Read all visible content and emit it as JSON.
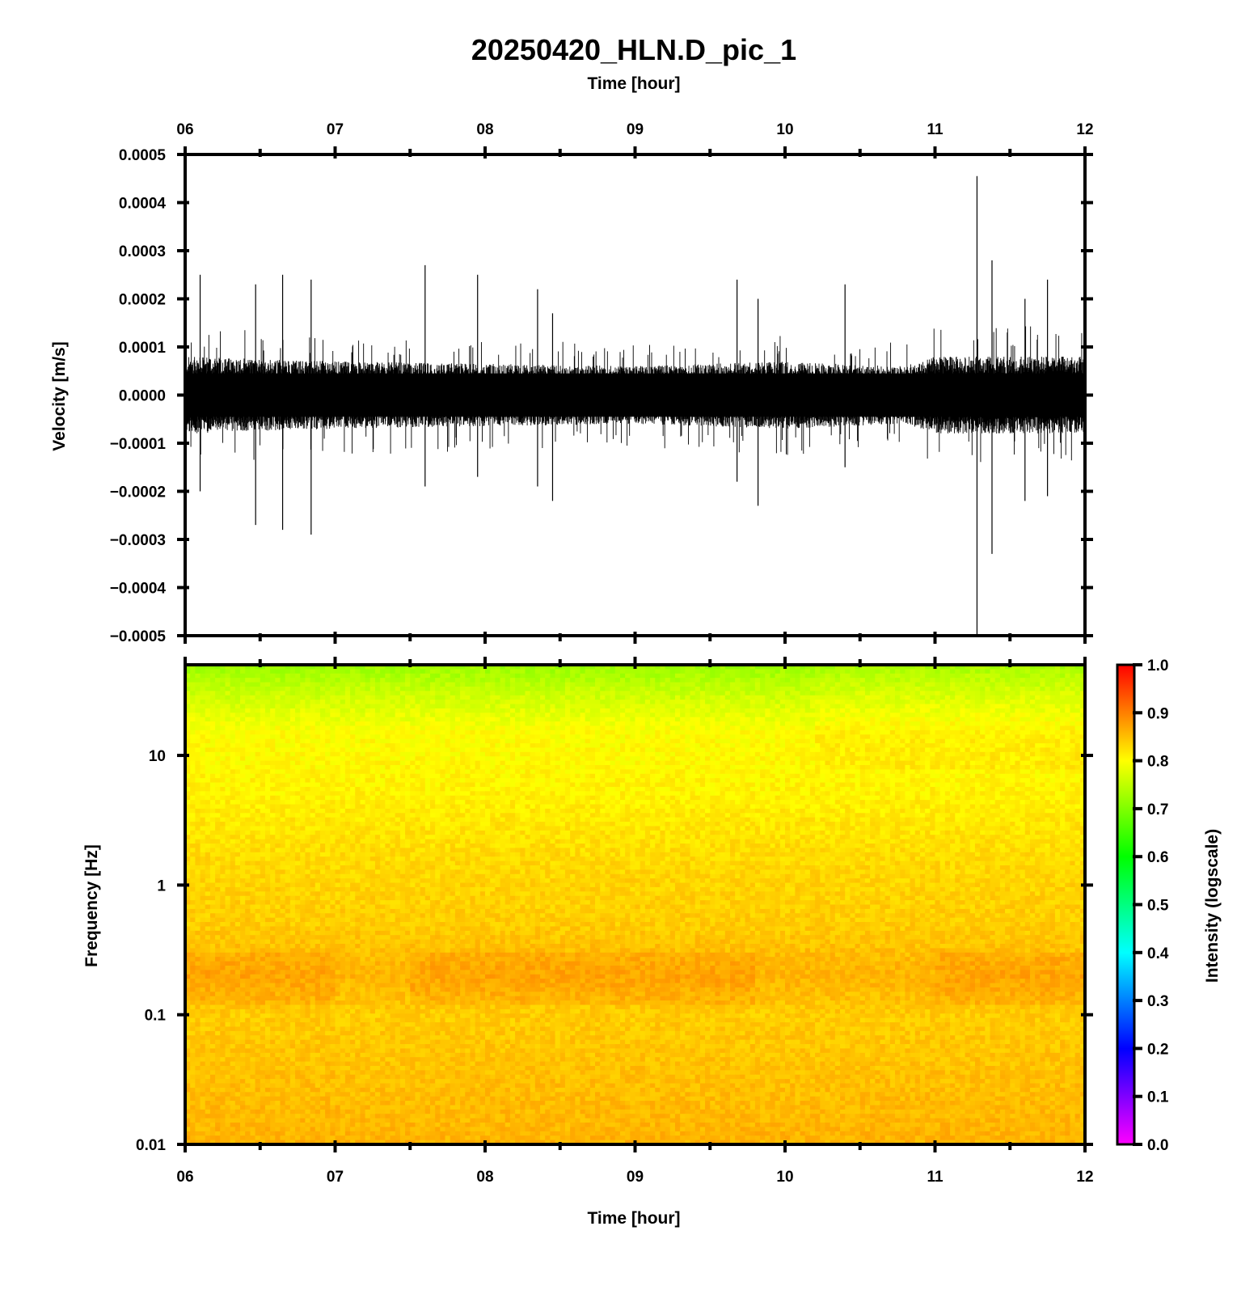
{
  "figure": {
    "title": "20250420_HLN.D_pic_1"
  },
  "chart_data": [
    {
      "type": "line",
      "panel": "waveform",
      "xlabel_top": "Time [hour]",
      "ylabel": "Velocity [m/s]",
      "x_tick_labels": [
        "06",
        "07",
        "08",
        "09",
        "10",
        "11",
        "12"
      ],
      "x_range_hours": [
        6,
        12
      ],
      "ylim": [
        -0.0005,
        0.0005
      ],
      "y_tick_labels": [
        "0.0005",
        "0.0004",
        "0.0003",
        "0.0002",
        "0.0001",
        "0.0000",
        "−0.0001",
        "−0.0002",
        "−0.0003",
        "−0.0004",
        "−0.0005"
      ],
      "y_ticks": [
        0.0005,
        0.0004,
        0.0003,
        0.0002,
        0.0001,
        0.0,
        -0.0001,
        -0.0002,
        -0.0003,
        -0.0004,
        -0.0005
      ],
      "noise_envelope": [
        {
          "t": 6.0,
          "amp": 8e-05
        },
        {
          "t": 7.0,
          "amp": 7e-05
        },
        {
          "t": 8.0,
          "amp": 6.5e-05
        },
        {
          "t": 9.0,
          "amp": 6e-05
        },
        {
          "t": 10.0,
          "amp": 7e-05
        },
        {
          "t": 10.8,
          "amp": 6e-05
        },
        {
          "t": 11.0,
          "amp": 8e-05
        },
        {
          "t": 12.0,
          "amp": 8e-05
        }
      ],
      "spikes": [
        {
          "t": 6.1,
          "pos": 0.00025,
          "neg": -0.0002
        },
        {
          "t": 6.47,
          "pos": 0.00023,
          "neg": -0.00027
        },
        {
          "t": 6.65,
          "pos": 0.00025,
          "neg": -0.00028
        },
        {
          "t": 6.84,
          "pos": 0.00024,
          "neg": -0.00029
        },
        {
          "t": 7.6,
          "pos": 0.00027,
          "neg": -0.00019
        },
        {
          "t": 7.95,
          "pos": 0.00025,
          "neg": -0.00017
        },
        {
          "t": 8.35,
          "pos": 0.00022,
          "neg": -0.00019
        },
        {
          "t": 8.45,
          "pos": 0.00017,
          "neg": -0.00022
        },
        {
          "t": 9.68,
          "pos": 0.00024,
          "neg": -0.00018
        },
        {
          "t": 9.82,
          "pos": 0.0002,
          "neg": -0.00023
        },
        {
          "t": 10.4,
          "pos": 0.00023,
          "neg": -0.00015
        },
        {
          "t": 11.28,
          "pos": 0.000455,
          "neg": -0.0005
        },
        {
          "t": 11.38,
          "pos": 0.00028,
          "neg": -0.00033
        },
        {
          "t": 11.6,
          "pos": 0.0002,
          "neg": -0.00022
        },
        {
          "t": 11.75,
          "pos": 0.00024,
          "neg": -0.00021
        }
      ]
    },
    {
      "type": "heatmap",
      "panel": "spectrogram",
      "xlabel": "Time [hour]",
      "ylabel": "Frequency [Hz]",
      "x_tick_labels": [
        "06",
        "07",
        "08",
        "09",
        "10",
        "11",
        "12"
      ],
      "x_range_hours": [
        6,
        12
      ],
      "y_scale": "log",
      "ylim": [
        0.01,
        50
      ],
      "y_tick_labels": [
        "10",
        "1",
        "0.1",
        "0.01"
      ],
      "y_ticks": [
        10,
        1,
        0.1,
        0.01
      ],
      "intensity_profile": [
        {
          "freq": 50,
          "intensity": 0.72
        },
        {
          "freq": 30,
          "intensity": 0.76
        },
        {
          "freq": 15,
          "intensity": 0.8
        },
        {
          "freq": 5,
          "intensity": 0.81
        },
        {
          "freq": 1.5,
          "intensity": 0.83
        },
        {
          "freq": 0.5,
          "intensity": 0.84
        },
        {
          "freq": 0.2,
          "intensity": 0.86
        },
        {
          "freq": 0.1,
          "intensity": 0.84
        },
        {
          "freq": 0.01,
          "intensity": 0.86
        }
      ],
      "colorbar": {
        "label": "Intensity (logscale)",
        "range": [
          0.0,
          1.0
        ],
        "tick_labels": [
          "1.0",
          "0.9",
          "0.8",
          "0.7",
          "0.6",
          "0.5",
          "0.4",
          "0.3",
          "0.2",
          "0.1",
          "0.0"
        ],
        "ticks": [
          1.0,
          0.9,
          0.8,
          0.7,
          0.6,
          0.5,
          0.4,
          0.3,
          0.2,
          0.1,
          0.0
        ],
        "colors": [
          "#ff00ff",
          "#0000ff",
          "#00ffff",
          "#00ff00",
          "#ffff00",
          "#ff0000"
        ]
      }
    }
  ]
}
